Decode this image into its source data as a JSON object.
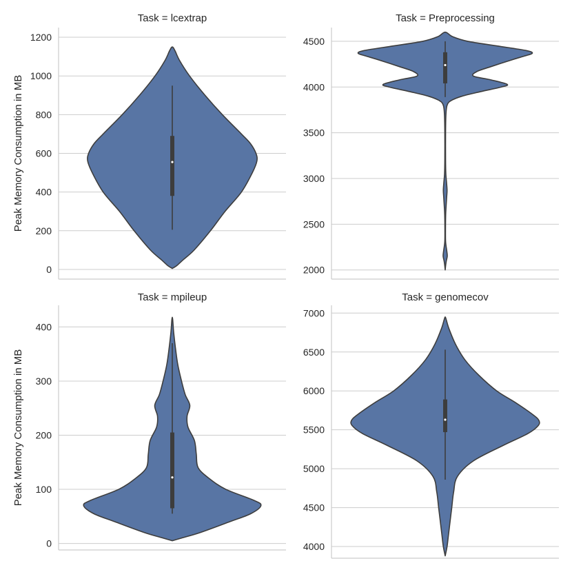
{
  "colors": {
    "violin_fill": "#5875a4",
    "violin_edge": "#3d3d3d",
    "box": "#3d3d3d",
    "median": "#ffffff"
  },
  "chart_data": [
    {
      "type": "violin",
      "title": "Task = lcextrap",
      "ylabel": "Peak Memory Consumption in MB",
      "ylim": [
        -50,
        1250
      ],
      "yticks": [
        0,
        200,
        400,
        600,
        800,
        1000,
        1200
      ],
      "grid": true,
      "density": [
        [
          5,
          0
        ],
        [
          20,
          0.05
        ],
        [
          50,
          0.12
        ],
        [
          100,
          0.24
        ],
        [
          200,
          0.42
        ],
        [
          300,
          0.58
        ],
        [
          400,
          0.76
        ],
        [
          500,
          0.88
        ],
        [
          560,
          0.93
        ],
        [
          600,
          0.92
        ],
        [
          650,
          0.86
        ],
        [
          700,
          0.76
        ],
        [
          800,
          0.55
        ],
        [
          900,
          0.36
        ],
        [
          1000,
          0.19
        ],
        [
          1080,
          0.08
        ],
        [
          1130,
          0.03
        ],
        [
          1150,
          0
        ]
      ],
      "box": {
        "whisker_low": 205,
        "q1": 380,
        "median": 555,
        "q3": 690,
        "whisker_high": 950
      }
    },
    {
      "type": "violin",
      "title": "Task = Preprocessing",
      "ylabel": "",
      "ylim": [
        1900,
        4650
      ],
      "yticks": [
        2000,
        2500,
        3000,
        3500,
        4000,
        4500
      ],
      "grid": true,
      "density": [
        [
          2000,
          0
        ],
        [
          2050,
          0.005
        ],
        [
          2100,
          0.012
        ],
        [
          2150,
          0.022
        ],
        [
          2200,
          0.018
        ],
        [
          2300,
          0.005
        ],
        [
          2400,
          0.003
        ],
        [
          2600,
          0.005
        ],
        [
          2700,
          0.01
        ],
        [
          2800,
          0.016
        ],
        [
          2870,
          0.02
        ],
        [
          2950,
          0.015
        ],
        [
          3050,
          0.007
        ],
        [
          3200,
          0.004
        ],
        [
          3500,
          0.004
        ],
        [
          3700,
          0.008
        ],
        [
          3800,
          0.02
        ],
        [
          3850,
          0.06
        ],
        [
          3900,
          0.18
        ],
        [
          3950,
          0.38
        ],
        [
          4000,
          0.6
        ],
        [
          4030,
          0.66
        ],
        [
          4080,
          0.48
        ],
        [
          4120,
          0.3
        ],
        [
          4170,
          0.34
        ],
        [
          4220,
          0.48
        ],
        [
          4300,
          0.72
        ],
        [
          4340,
          0.85
        ],
        [
          4370,
          0.93
        ],
        [
          4400,
          0.86
        ],
        [
          4450,
          0.55
        ],
        [
          4500,
          0.24
        ],
        [
          4550,
          0.08
        ],
        [
          4600,
          0
        ]
      ],
      "box": {
        "whisker_low": 3890,
        "q1": 4040,
        "median": 4240,
        "q3": 4380,
        "whisker_high": 4500
      }
    },
    {
      "type": "violin",
      "title": "Task = mpileup",
      "ylabel": "Peak Memory Consumption in MB",
      "ylim": [
        -12,
        440
      ],
      "yticks": [
        0,
        100,
        200,
        300,
        400
      ],
      "grid": true,
      "density": [
        [
          5,
          0
        ],
        [
          10,
          0.1
        ],
        [
          20,
          0.3
        ],
        [
          40,
          0.62
        ],
        [
          55,
          0.85
        ],
        [
          70,
          0.96
        ],
        [
          80,
          0.88
        ],
        [
          100,
          0.58
        ],
        [
          120,
          0.4
        ],
        [
          140,
          0.28
        ],
        [
          165,
          0.26
        ],
        [
          190,
          0.24
        ],
        [
          215,
          0.17
        ],
        [
          235,
          0.16
        ],
        [
          255,
          0.19
        ],
        [
          275,
          0.14
        ],
        [
          300,
          0.1
        ],
        [
          330,
          0.06
        ],
        [
          360,
          0.035
        ],
        [
          390,
          0.015
        ],
        [
          418,
          0
        ]
      ],
      "box": {
        "whisker_low": 55,
        "q1": 65,
        "median": 122,
        "q3": 205,
        "whisker_high": 370
      }
    },
    {
      "type": "violin",
      "title": "Task = genomecov",
      "ylabel": "",
      "ylim": [
        3850,
        7100
      ],
      "yticks": [
        4000,
        4500,
        5000,
        5500,
        6000,
        6500,
        7000
      ],
      "grid": true,
      "density": [
        [
          3880,
          0
        ],
        [
          4000,
          0.02
        ],
        [
          4150,
          0.035
        ],
        [
          4300,
          0.05
        ],
        [
          4500,
          0.07
        ],
        [
          4700,
          0.09
        ],
        [
          4900,
          0.13
        ],
        [
          5100,
          0.3
        ],
        [
          5300,
          0.62
        ],
        [
          5450,
          0.88
        ],
        [
          5550,
          0.99
        ],
        [
          5620,
          1.0
        ],
        [
          5700,
          0.93
        ],
        [
          5850,
          0.75
        ],
        [
          6000,
          0.55
        ],
        [
          6200,
          0.36
        ],
        [
          6400,
          0.21
        ],
        [
          6600,
          0.11
        ],
        [
          6800,
          0.04
        ],
        [
          6920,
          0.01
        ],
        [
          6950,
          0
        ]
      ],
      "box": {
        "whisker_low": 4860,
        "q1": 5470,
        "median": 5630,
        "q3": 5890,
        "whisker_high": 6530
      }
    }
  ]
}
